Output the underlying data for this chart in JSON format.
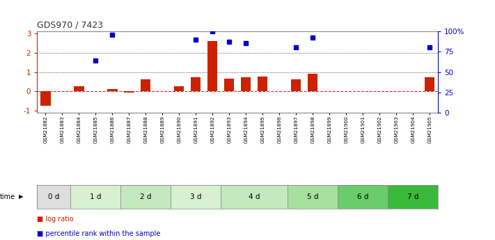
{
  "title": "GDS970 / 7423",
  "samples": [
    "GSM21882",
    "GSM21883",
    "GSM21884",
    "GSM21885",
    "GSM21886",
    "GSM21887",
    "GSM21888",
    "GSM21889",
    "GSM21890",
    "GSM21891",
    "GSM21892",
    "GSM21893",
    "GSM21894",
    "GSM21895",
    "GSM21896",
    "GSM21897",
    "GSM21898",
    "GSM21899",
    "GSM21900",
    "GSM21901",
    "GSM21902",
    "GSM21903",
    "GSM21904",
    "GSM21905"
  ],
  "log_ratio": [
    -0.75,
    0.0,
    0.28,
    0.0,
    0.13,
    -0.05,
    0.62,
    0.0,
    0.28,
    0.72,
    2.6,
    0.65,
    0.72,
    0.75,
    0.0,
    0.62,
    0.9,
    0.0,
    0.0,
    0.0,
    0.0,
    0.0,
    0.0,
    0.72
  ],
  "percentile_rank_pct": [
    0.0,
    0.0,
    0.0,
    64.0,
    96.0,
    0.0,
    0.0,
    0.0,
    0.0,
    90.0,
    100.0,
    87.5,
    85.0,
    0.0,
    0.0,
    80.0,
    92.5,
    0.0,
    0.0,
    0.0,
    0.0,
    0.0,
    0.0,
    80.0
  ],
  "time_groups": [
    {
      "label": "0 d",
      "start": 0,
      "end": 2
    },
    {
      "label": "1 d",
      "start": 2,
      "end": 5
    },
    {
      "label": "2 d",
      "start": 5,
      "end": 8
    },
    {
      "label": "3 d",
      "start": 8,
      "end": 11
    },
    {
      "label": "4 d",
      "start": 11,
      "end": 15
    },
    {
      "label": "5 d",
      "start": 15,
      "end": 18
    },
    {
      "label": "6 d",
      "start": 18,
      "end": 21
    },
    {
      "label": "7 d",
      "start": 21,
      "end": 24
    }
  ],
  "group_colors": [
    "#dedede",
    "#d8f0d0",
    "#c4e8c0",
    "#d8f0d0",
    "#c4e8c0",
    "#a8e0a0",
    "#6acc6a",
    "#3aba3a"
  ],
  "ylim_left": [
    -1.1,
    3.1
  ],
  "ylim_right": [
    0,
    100
  ],
  "yticks_left": [
    -1,
    0,
    1,
    2,
    3
  ],
  "yticks_right": [
    0,
    25,
    50,
    75,
    100
  ],
  "bar_color": "#cc2200",
  "dot_color": "#0000cc",
  "zero_line_color": "#cc3333",
  "grid_color": "#222222",
  "bg_color": "#ffffff",
  "right_axis_color": "#0000cc",
  "legend_bar_label": "log ratio",
  "legend_dot_label": "percentile rank within the sample",
  "time_label": "time"
}
